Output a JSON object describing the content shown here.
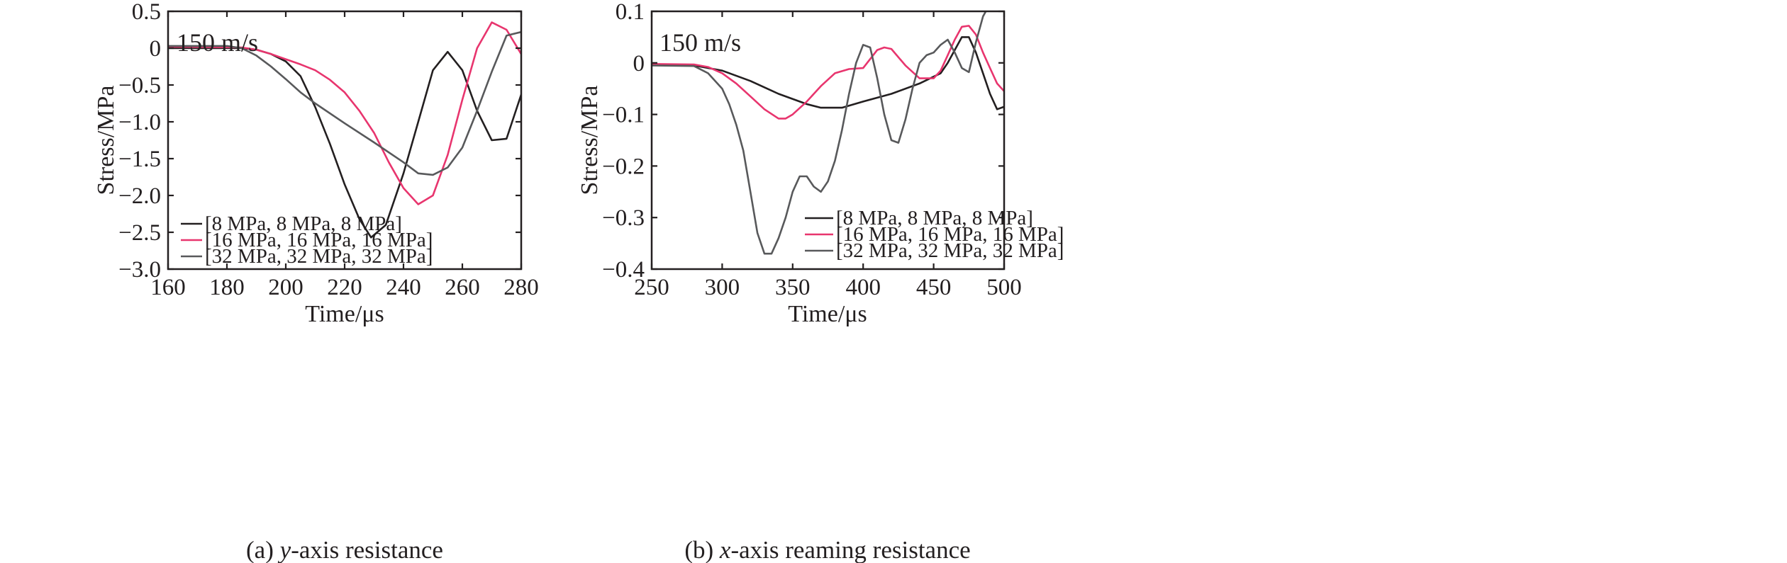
{
  "chart_data": [
    {
      "type": "line",
      "caption_prefix": "(a) ",
      "caption_italic": "y",
      "caption_rest": "-axis resistance",
      "annotation": "150 m/s",
      "xlabel": "Time/μs",
      "ylabel": "Stress/MPa",
      "xlim": [
        160,
        280
      ],
      "ylim": [
        -3.0,
        0.5
      ],
      "xticks": [
        160,
        180,
        200,
        220,
        240,
        260,
        280
      ],
      "xtick_labels": [
        "160",
        "180",
        "200",
        "220",
        "240",
        "260",
        "280"
      ],
      "yticks": [
        0.5,
        0,
        -0.5,
        -1.0,
        -1.5,
        -2.0,
        -2.5,
        -3.0
      ],
      "ytick_labels": [
        "0.5",
        "0",
        "−0.5",
        "−1.0",
        "−1.5",
        "−2.0",
        "−2.5",
        "−3.0"
      ],
      "legend_position": "bottom-left",
      "grid": false,
      "series": [
        {
          "name": "[8 MPa, 8 MPa, 8 MPa]",
          "color": "#231f20",
          "x": [
            160,
            185,
            190,
            195,
            200,
            205,
            210,
            215,
            220,
            225,
            229,
            234,
            240,
            245,
            250,
            255,
            260,
            265,
            270,
            275,
            280
          ],
          "y": [
            0.0,
            0.0,
            -0.02,
            -0.08,
            -0.18,
            -0.38,
            -0.8,
            -1.3,
            -1.85,
            -2.32,
            -2.57,
            -2.4,
            -1.7,
            -1.0,
            -0.3,
            -0.05,
            -0.3,
            -0.85,
            -1.25,
            -1.23,
            -0.63
          ]
        },
        {
          "name": "[16 MPa, 16 MPa, 16 MPa]",
          "color": "#e8356e",
          "x": [
            160,
            185,
            190,
            195,
            200,
            205,
            210,
            215,
            220,
            225,
            230,
            235,
            240,
            245,
            250,
            255,
            260,
            265,
            270,
            275,
            280
          ],
          "y": [
            0.02,
            0.01,
            -0.02,
            -0.08,
            -0.15,
            -0.22,
            -0.3,
            -0.43,
            -0.6,
            -0.85,
            -1.15,
            -1.55,
            -1.9,
            -2.12,
            -2.0,
            -1.45,
            -0.7,
            0.0,
            0.35,
            0.25,
            -0.08
          ]
        },
        {
          "name": "[32 MPa, 32 MPa, 32 MPa]",
          "color": "#58595b",
          "x": [
            160,
            180,
            185,
            190,
            195,
            200,
            205,
            210,
            220,
            230,
            240,
            245,
            250,
            255,
            260,
            265,
            270,
            275,
            280
          ],
          "y": [
            0.03,
            0.03,
            0.0,
            -0.1,
            -0.25,
            -0.42,
            -0.6,
            -0.75,
            -1.02,
            -1.28,
            -1.55,
            -1.7,
            -1.72,
            -1.62,
            -1.35,
            -0.85,
            -0.32,
            0.17,
            0.22
          ]
        }
      ]
    },
    {
      "type": "line",
      "caption_prefix": "(b) ",
      "caption_italic": "x",
      "caption_rest": "-axis reaming resistance",
      "annotation": "150 m/s",
      "xlabel": "Time/μs",
      "ylabel": "Stress/MPa",
      "xlim": [
        250,
        500
      ],
      "ylim": [
        -0.4,
        0.1
      ],
      "xticks": [
        250,
        300,
        350,
        400,
        450,
        500
      ],
      "xtick_labels": [
        "250",
        "300",
        "350",
        "400",
        "450",
        "500"
      ],
      "yticks": [
        0.1,
        0,
        -0.1,
        -0.2,
        -0.3,
        -0.4
      ],
      "ytick_labels": [
        "0.1",
        "0",
        "−0.1",
        "−0.2",
        "−0.3",
        "−0.4"
      ],
      "legend_position": "bottom-right",
      "grid": false,
      "series": [
        {
          "name": "[8 MPa, 8 MPa, 8 MPa]",
          "color": "#231f20",
          "x": [
            250,
            280,
            300,
            320,
            340,
            360,
            370,
            385,
            400,
            420,
            440,
            455,
            460,
            465,
            470,
            475,
            480,
            485,
            490,
            495,
            500
          ],
          "y": [
            -0.003,
            -0.005,
            -0.015,
            -0.035,
            -0.06,
            -0.08,
            -0.087,
            -0.087,
            -0.075,
            -0.06,
            -0.04,
            -0.02,
            0.0,
            0.025,
            0.05,
            0.05,
            0.02,
            -0.02,
            -0.06,
            -0.09,
            -0.085
          ]
        },
        {
          "name": "[16 MPa, 16 MPa, 16 MPa]",
          "color": "#e8356e",
          "x": [
            250,
            280,
            290,
            300,
            310,
            320,
            330,
            340,
            345,
            350,
            360,
            370,
            380,
            390,
            400,
            410,
            415,
            420,
            430,
            440,
            450,
            455,
            460,
            465,
            470,
            475,
            480,
            485,
            490,
            495,
            500
          ],
          "y": [
            -0.002,
            -0.003,
            -0.008,
            -0.02,
            -0.04,
            -0.065,
            -0.09,
            -0.108,
            -0.108,
            -0.1,
            -0.075,
            -0.045,
            -0.02,
            -0.012,
            -0.01,
            0.025,
            0.03,
            0.027,
            -0.005,
            -0.03,
            -0.03,
            -0.015,
            0.015,
            0.045,
            0.07,
            0.072,
            0.055,
            0.02,
            -0.01,
            -0.04,
            -0.055
          ]
        },
        {
          "name": "[32 MPa, 32 MPa, 32 MPa]",
          "color": "#58595b",
          "x": [
            250,
            280,
            290,
            300,
            305,
            310,
            315,
            320,
            325,
            330,
            335,
            340,
            345,
            350,
            355,
            360,
            365,
            370,
            375,
            380,
            385,
            390,
            395,
            400,
            405,
            410,
            415,
            420,
            425,
            430,
            435,
            440,
            445,
            450,
            455,
            460,
            465,
            470,
            475,
            480,
            485,
            487
          ],
          "y": [
            -0.005,
            -0.006,
            -0.02,
            -0.05,
            -0.08,
            -0.12,
            -0.17,
            -0.25,
            -0.33,
            -0.37,
            -0.37,
            -0.34,
            -0.3,
            -0.25,
            -0.22,
            -0.22,
            -0.24,
            -0.25,
            -0.23,
            -0.19,
            -0.13,
            -0.06,
            0.0,
            0.035,
            0.03,
            -0.03,
            -0.1,
            -0.15,
            -0.155,
            -0.11,
            -0.05,
            0.0,
            0.015,
            0.02,
            0.035,
            0.045,
            0.02,
            -0.01,
            -0.018,
            0.04,
            0.09,
            0.1
          ]
        }
      ]
    }
  ]
}
